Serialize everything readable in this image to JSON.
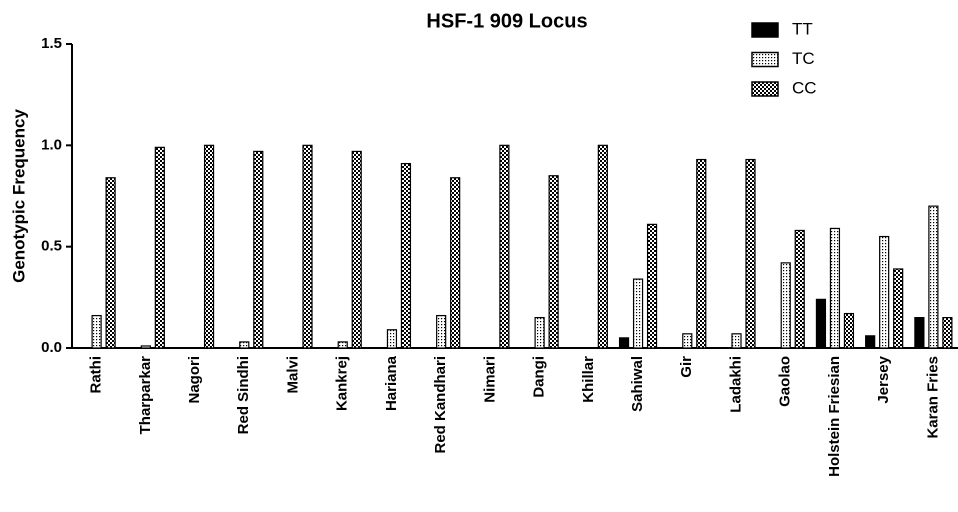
{
  "chart_data": {
    "type": "bar",
    "title": "HSF-1 909 Locus",
    "y_label": "Genotypic Frequency",
    "categories": [
      "Rathi",
      "Tharparkar",
      "Nagori",
      "Red Sindhi",
      "Malvi",
      "Kankrej",
      "Hariana",
      "Red Kandhari",
      "Nimari",
      "Dangi",
      "Khillar",
      "Sahiwal",
      "Gir",
      "Ladakhi",
      "Gaolao",
      "Holstein Friesian",
      "Jersey",
      "Karan Fries"
    ],
    "series": [
      {
        "name": "TT",
        "color": "#000000",
        "pattern": "solid",
        "values": [
          0,
          0,
          0,
          0,
          0,
          0,
          0,
          0,
          0,
          0,
          0,
          0.05,
          0,
          0,
          0,
          0.24,
          0.06,
          0.15
        ]
      },
      {
        "name": "TC",
        "color": "#000000",
        "pattern": "dots",
        "values": [
          0.16,
          0.01,
          0,
          0.03,
          0,
          0.03,
          0.09,
          0.16,
          0,
          0.15,
          0,
          0.34,
          0.07,
          0.07,
          0.42,
          0.59,
          0.55,
          0.7
        ]
      },
      {
        "name": "CC",
        "color": "#000000",
        "pattern": "checker",
        "values": [
          0.84,
          0.99,
          1.0,
          0.97,
          1.0,
          0.97,
          0.91,
          0.84,
          1.0,
          0.85,
          1.0,
          0.61,
          0.93,
          0.93,
          0.58,
          0.17,
          0.39,
          0.15
        ]
      }
    ],
    "ylim": [
      0,
      1.5
    ],
    "yticks": [
      {
        "value": 0,
        "label": "0.0"
      },
      {
        "value": 0.5,
        "label": "0.5"
      },
      {
        "value": 1.0,
        "label": "1.0"
      },
      {
        "value": 1.5,
        "label": "1.5"
      }
    ],
    "grid": false,
    "legend": "top-right"
  }
}
